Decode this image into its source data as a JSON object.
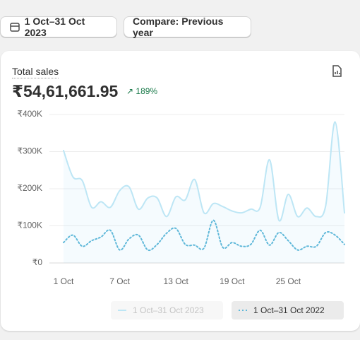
{
  "toolbar": {
    "date_button": "1 Oct–31 Oct 2023",
    "compare_button": "Compare: Previous year"
  },
  "card": {
    "title": "Total sales",
    "value": "₹54,61,661.95",
    "change": "189%"
  },
  "chart_data": {
    "type": "line",
    "categories": [
      "1 Oct",
      null,
      null,
      null,
      null,
      null,
      "7 Oct",
      null,
      null,
      null,
      null,
      null,
      "13 Oct",
      null,
      null,
      null,
      null,
      null,
      "19 Oct",
      null,
      null,
      null,
      null,
      null,
      "25 Oct",
      null,
      null,
      null,
      null,
      null,
      null
    ],
    "series": [
      {
        "name": "1 Oct–31 Oct 2023",
        "color": "#bde6f5",
        "style": "solid",
        "values": [
          303000,
          232000,
          222000,
          150000,
          165000,
          150000,
          195000,
          205000,
          145000,
          175000,
          175000,
          125000,
          178000,
          170000,
          225000,
          135000,
          160000,
          152000,
          140000,
          135000,
          145000,
          150000,
          278000,
          115000,
          185000,
          125000,
          148000,
          125000,
          155000,
          380000,
          135000
        ]
      },
      {
        "name": "1 Oct–31 Oct 2022",
        "color": "#5fb8d9",
        "style": "dotted",
        "values": [
          55000,
          75000,
          45000,
          60000,
          70000,
          88000,
          35000,
          65000,
          75000,
          35000,
          50000,
          80000,
          93000,
          50000,
          48000,
          40000,
          115000,
          42000,
          55000,
          45000,
          50000,
          88000,
          48000,
          82000,
          60000,
          35000,
          45000,
          45000,
          82000,
          75000,
          50000
        ]
      }
    ],
    "ylim": [
      0,
      400000
    ],
    "yticks": [
      {
        "value": 0,
        "label": "₹0"
      },
      {
        "value": 100000,
        "label": "₹100K"
      },
      {
        "value": 200000,
        "label": "₹200K"
      },
      {
        "value": 300000,
        "label": "₹300K"
      },
      {
        "value": 400000,
        "label": "₹400K"
      }
    ],
    "grid": true
  }
}
